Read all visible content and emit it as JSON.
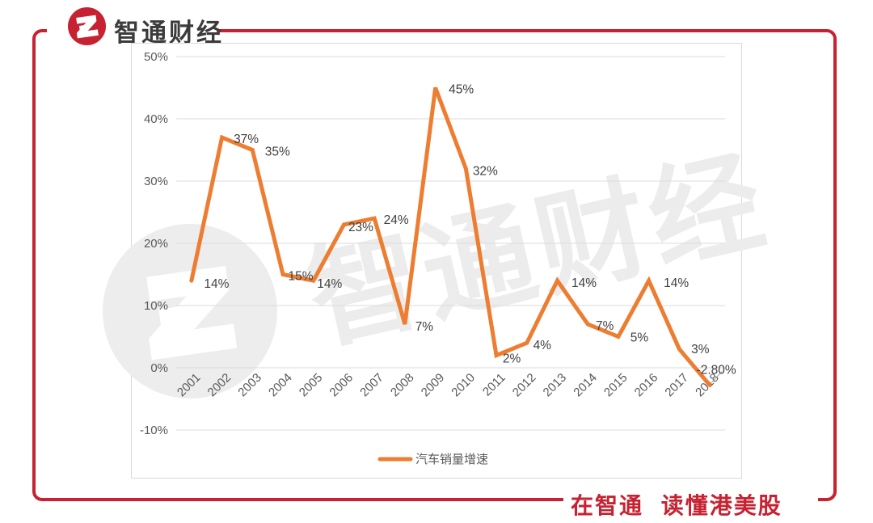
{
  "brand": {
    "name": "智通财经",
    "tagline": "在智通 读懂港美股",
    "red": "#C72231"
  },
  "watermark": {
    "text": "智通财经"
  },
  "chart_data": {
    "type": "line",
    "title": "",
    "xlabel": "",
    "ylabel": "",
    "categories": [
      "2001",
      "2002",
      "2003",
      "2004",
      "2005",
      "2006",
      "2007",
      "2008",
      "2009",
      "2010",
      "2011",
      "2012",
      "2013",
      "2014",
      "2015",
      "2016",
      "2017",
      "2018"
    ],
    "series": [
      {
        "name": "汽车销量增速",
        "values": [
          14,
          37,
          35,
          15,
          14,
          23,
          24,
          7,
          45,
          32,
          2,
          4,
          14,
          7,
          5,
          14,
          3,
          -2.8
        ]
      }
    ],
    "point_labels": [
      "14%",
      "37%",
      "35%",
      "15%",
      "14%",
      "23%",
      "24%",
      "7%",
      "45%",
      "32%",
      "2%",
      "4%",
      "14%",
      "7%",
      "5%",
      "14%",
      "3%",
      "-2.80%"
    ],
    "yticks": [
      {
        "value": 50,
        "label": "50%"
      },
      {
        "value": 40,
        "label": "40%"
      },
      {
        "value": 30,
        "label": "30%"
      },
      {
        "value": 20,
        "label": "20%"
      },
      {
        "value": 10,
        "label": "10%"
      },
      {
        "value": 0,
        "label": "0%"
      },
      {
        "value": -10,
        "label": "-10%"
      }
    ],
    "ylim": [
      -10,
      50
    ],
    "grid": true,
    "legend": "汽车销量增速",
    "legend_position": "bottom",
    "line_color": "#ED7D31",
    "grid_color": "#DBDBDB",
    "tick_color": "#595959",
    "label_color": "#404040"
  }
}
